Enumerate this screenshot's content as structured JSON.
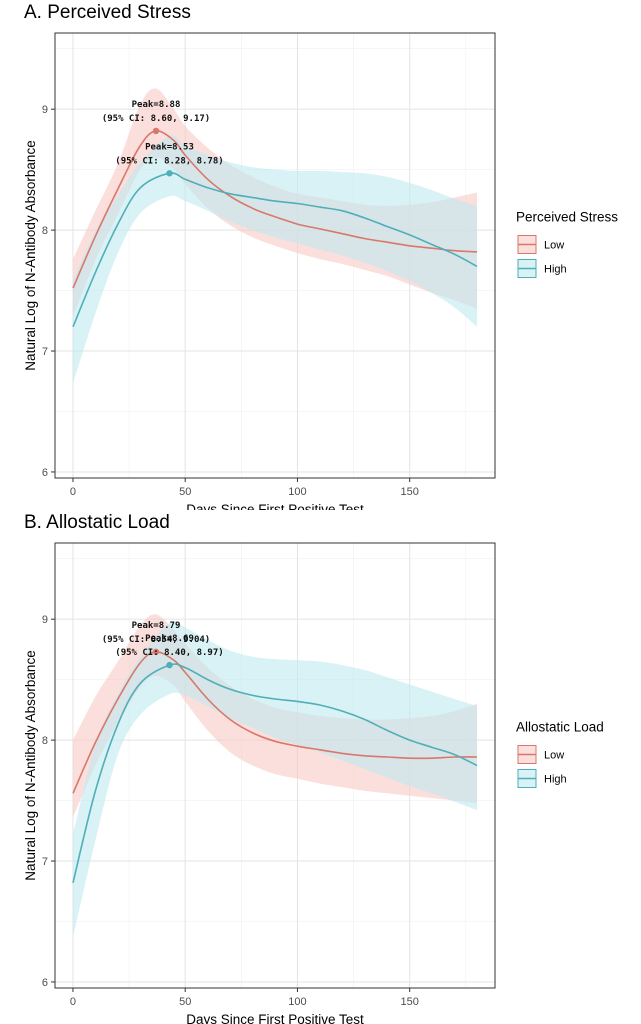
{
  "chart_data": [
    {
      "type": "line",
      "title": "A. Perceived Stress",
      "xlabel": "Days Since First Positive Test",
      "ylabel": "Natural Log of N-Antibody Absorbance",
      "xlim": [
        -8,
        188
      ],
      "ylim": [
        5.95,
        9.63
      ],
      "x_ticks": [
        0,
        50,
        100,
        150
      ],
      "y_ticks": [
        6,
        7,
        8,
        9
      ],
      "grid": true,
      "legend": {
        "title": "Perceived Stress",
        "position": "right"
      },
      "series": [
        {
          "name": "Low",
          "color": "#d9776b",
          "fill": "#f8c9c4",
          "x": [
            0,
            10,
            20,
            30,
            37,
            45,
            50,
            60,
            70,
            80,
            90,
            100,
            110,
            120,
            130,
            140,
            150,
            160,
            170,
            180
          ],
          "y": [
            7.52,
            7.95,
            8.34,
            8.7,
            8.82,
            8.74,
            8.62,
            8.42,
            8.28,
            8.18,
            8.11,
            8.05,
            8.01,
            7.97,
            7.93,
            7.9,
            7.87,
            7.85,
            7.83,
            7.82
          ],
          "lower": [
            7.28,
            7.75,
            8.13,
            8.5,
            8.6,
            8.5,
            8.38,
            8.18,
            8.04,
            7.94,
            7.87,
            7.81,
            7.76,
            7.72,
            7.67,
            7.62,
            7.55,
            7.48,
            7.42,
            7.35
          ],
          "upper": [
            7.76,
            8.16,
            8.55,
            9.04,
            9.17,
            9.0,
            8.86,
            8.68,
            8.54,
            8.44,
            8.36,
            8.3,
            8.27,
            8.24,
            8.21,
            8.2,
            8.21,
            8.23,
            8.27,
            8.31
          ],
          "peak": {
            "x": 37,
            "y": 8.82
          },
          "peak_label": "Peak=8.88",
          "ci_label": "(95% CI: 8.60, 9.17)"
        },
        {
          "name": "High",
          "color": "#4fafb8",
          "fill": "#bfeaf0",
          "x": [
            0,
            10,
            20,
            30,
            43,
            50,
            60,
            70,
            80,
            90,
            100,
            110,
            120,
            130,
            140,
            150,
            160,
            170,
            180
          ],
          "y": [
            7.2,
            7.65,
            8.05,
            8.35,
            8.47,
            8.42,
            8.35,
            8.3,
            8.27,
            8.24,
            8.22,
            8.19,
            8.16,
            8.1,
            8.03,
            7.96,
            7.88,
            7.8,
            7.7
          ],
          "lower": [
            6.73,
            7.31,
            7.81,
            8.14,
            8.28,
            8.24,
            8.16,
            8.07,
            8.0,
            7.94,
            7.89,
            7.84,
            7.79,
            7.73,
            7.66,
            7.58,
            7.48,
            7.36,
            7.2
          ],
          "upper": [
            7.58,
            7.99,
            8.29,
            8.56,
            8.78,
            8.7,
            8.62,
            8.56,
            8.52,
            8.5,
            8.49,
            8.49,
            8.48,
            8.47,
            8.44,
            8.39,
            8.33,
            8.26,
            8.2
          ],
          "peak": {
            "x": 43,
            "y": 8.47
          },
          "peak_label": "Peak=8.53",
          "ci_label": "(95% CI: 8.28, 8.78)"
        }
      ]
    },
    {
      "type": "line",
      "title": "B. Allostatic Load",
      "xlabel": "Days Since First Positive Test",
      "ylabel": "Natural Log of N-Antibody Absorbance",
      "xlim": [
        -8,
        188
      ],
      "ylim": [
        5.95,
        9.63
      ],
      "x_ticks": [
        0,
        50,
        100,
        150
      ],
      "y_ticks": [
        6,
        7,
        8,
        9
      ],
      "grid": true,
      "legend": {
        "title": "Allostatic Load",
        "position": "right"
      },
      "series": [
        {
          "name": "Low",
          "color": "#d9776b",
          "fill": "#f8c9c4",
          "x": [
            0,
            10,
            20,
            30,
            37,
            45,
            50,
            60,
            70,
            80,
            90,
            100,
            110,
            120,
            130,
            140,
            150,
            160,
            170,
            180
          ],
          "y": [
            7.56,
            7.98,
            8.34,
            8.64,
            8.73,
            8.66,
            8.56,
            8.34,
            8.17,
            8.06,
            7.99,
            7.95,
            7.92,
            7.89,
            7.87,
            7.86,
            7.85,
            7.85,
            7.86,
            7.86
          ],
          "lower": [
            7.36,
            7.79,
            8.14,
            8.44,
            8.53,
            8.45,
            8.32,
            8.08,
            7.9,
            7.79,
            7.72,
            7.68,
            7.64,
            7.61,
            7.58,
            7.56,
            7.54,
            7.52,
            7.5,
            7.48
          ],
          "upper": [
            8.0,
            8.36,
            8.65,
            8.95,
            9.04,
            8.91,
            8.8,
            8.6,
            8.45,
            8.34,
            8.27,
            8.23,
            8.2,
            8.18,
            8.17,
            8.17,
            8.18,
            8.2,
            8.24,
            8.3
          ],
          "peak": {
            "x": 37,
            "y": 8.73
          },
          "peak_label": "Peak=8.79",
          "ci_label": "(95% CI: 8.54, 9.04)"
        },
        {
          "name": "High",
          "color": "#4fafb8",
          "fill": "#bfeaf0",
          "x": [
            0,
            10,
            20,
            30,
            43,
            50,
            60,
            70,
            80,
            90,
            100,
            110,
            120,
            130,
            140,
            150,
            160,
            170,
            180
          ],
          "y": [
            6.82,
            7.58,
            8.13,
            8.47,
            8.62,
            8.6,
            8.5,
            8.42,
            8.37,
            8.34,
            8.32,
            8.29,
            8.24,
            8.17,
            8.08,
            8.0,
            7.94,
            7.88,
            7.79
          ],
          "lower": [
            6.37,
            7.17,
            7.88,
            8.21,
            8.38,
            8.37,
            8.28,
            8.18,
            8.1,
            8.02,
            7.96,
            7.9,
            7.83,
            7.76,
            7.69,
            7.62,
            7.56,
            7.49,
            7.42
          ],
          "upper": [
            7.22,
            7.97,
            8.38,
            8.69,
            8.97,
            8.93,
            8.83,
            8.74,
            8.69,
            8.67,
            8.66,
            8.65,
            8.62,
            8.58,
            8.52,
            8.46,
            8.4,
            8.34,
            8.28
          ],
          "peak": {
            "x": 43,
            "y": 8.62
          },
          "peak_label": "Peak=8.69",
          "ci_label": "(95% CI: 8.40, 8.97)"
        }
      ]
    }
  ]
}
